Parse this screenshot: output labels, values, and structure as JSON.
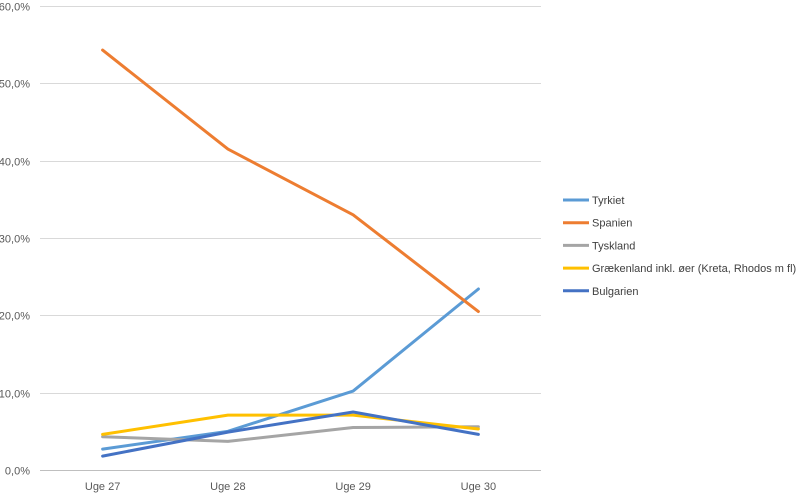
{
  "chart_data": {
    "type": "line",
    "categories": [
      "Uge 27",
      "Uge 28",
      "Uge 29",
      "Uge 30"
    ],
    "ylim": [
      0,
      60
    ],
    "ytick_values": [
      0,
      10,
      20,
      30,
      40,
      50,
      60
    ],
    "ytick_labels": [
      "0,0%",
      "10,0%",
      "20,0%",
      "30,0%",
      "40,0%",
      "50,0%",
      "60,0%"
    ],
    "grid": "horizontal",
    "legend": "right",
    "series": [
      {
        "name": "Tyrkiet",
        "color": "#5B9BD5",
        "values": [
          2.7,
          5.0,
          10.2,
          23.4
        ]
      },
      {
        "name": "Spanien",
        "color": "#ED7D31",
        "values": [
          54.3,
          41.5,
          33.0,
          20.5
        ]
      },
      {
        "name": "Tyskland",
        "color": "#A5A5A5",
        "values": [
          4.3,
          3.7,
          5.5,
          5.6
        ]
      },
      {
        "name": "Grækenland inkl. øer (Kreta, Rhodos m fl)",
        "color": "#FFC000",
        "values": [
          4.6,
          7.1,
          7.1,
          5.3
        ]
      },
      {
        "name": "Bulgarien",
        "color": "#4472C4",
        "values": [
          1.8,
          4.9,
          7.5,
          4.6
        ]
      }
    ]
  }
}
